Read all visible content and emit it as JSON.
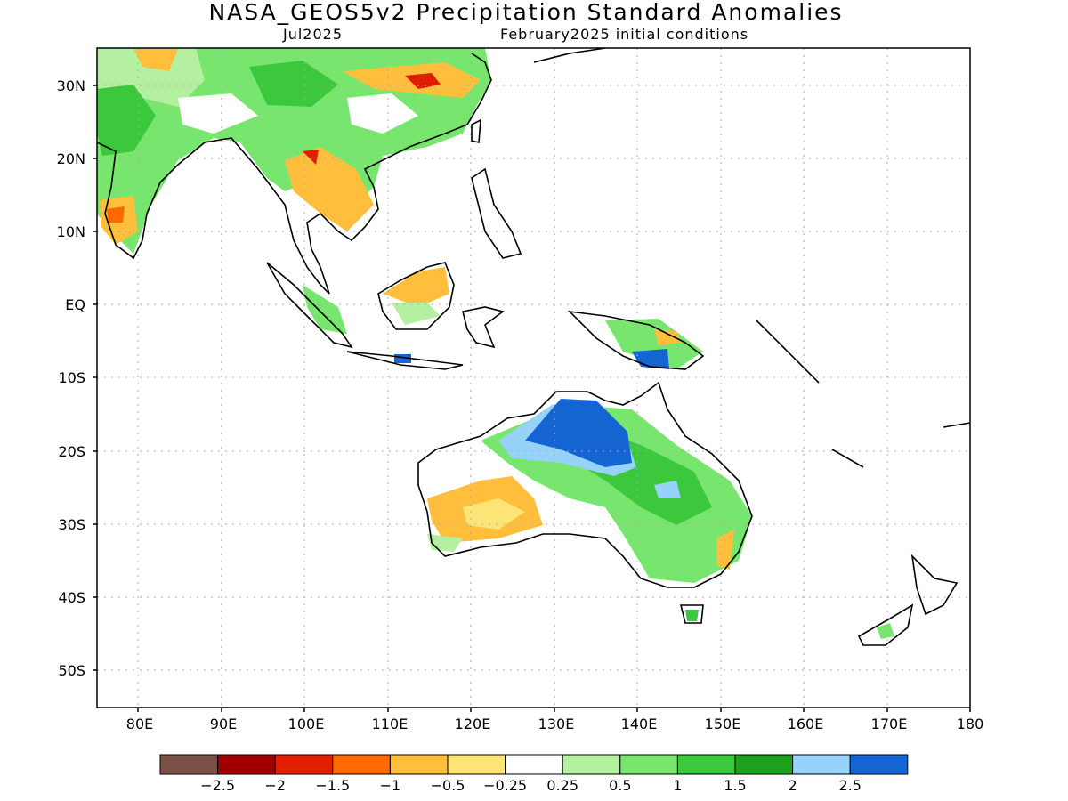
{
  "title": "NASA_GEOS5v2 Precipitation Standard Anomalies",
  "subtitle_left": "Jul2025",
  "subtitle_right": "February2025 initial conditions",
  "map": {
    "lat_labels": [
      "30N",
      "20N",
      "10N",
      "EQ",
      "10S",
      "20S",
      "30S",
      "40S",
      "50S"
    ],
    "lon_labels": [
      "80E",
      "90E",
      "100E",
      "110E",
      "120E",
      "130E",
      "140E",
      "150E",
      "160E",
      "170E",
      "180"
    ],
    "lat_values": [
      30,
      20,
      10,
      0,
      -10,
      -20,
      -30,
      -40,
      -50
    ],
    "lon_values": [
      80,
      90,
      100,
      110,
      120,
      130,
      140,
      150,
      160,
      170,
      180
    ],
    "lon_range": [
      75,
      180
    ],
    "lat_range": [
      -55,
      35
    ],
    "grid": "dotted"
  },
  "legend": {
    "colors": [
      "#7b5044",
      "#a00000",
      "#e01e00",
      "#ff6a00",
      "#ffbe3c",
      "#ffe478",
      "#ffffff",
      "#b4f0a0",
      "#78e66e",
      "#3cc83c",
      "#1ea01e",
      "#96d2fa",
      "#1464d2"
    ],
    "labels": [
      "−2.5",
      "−2",
      "−1.5",
      "−1",
      "−0.5",
      "−0.25",
      "0.25",
      "0.5",
      "1",
      "1.5",
      "2",
      "2.5"
    ]
  },
  "colors": {
    "orange": "#ffbe3c",
    "light_orange": "#ffe478",
    "dark_orange": "#ff6a00",
    "light_green": "#b4f0a0",
    "green": "#78e66e",
    "mid_green": "#3cc83c",
    "dark_green": "#1ea01e",
    "light_blue": "#96d2fa",
    "blue": "#1464d2",
    "red": "#e01e00",
    "coast": "#000000"
  }
}
